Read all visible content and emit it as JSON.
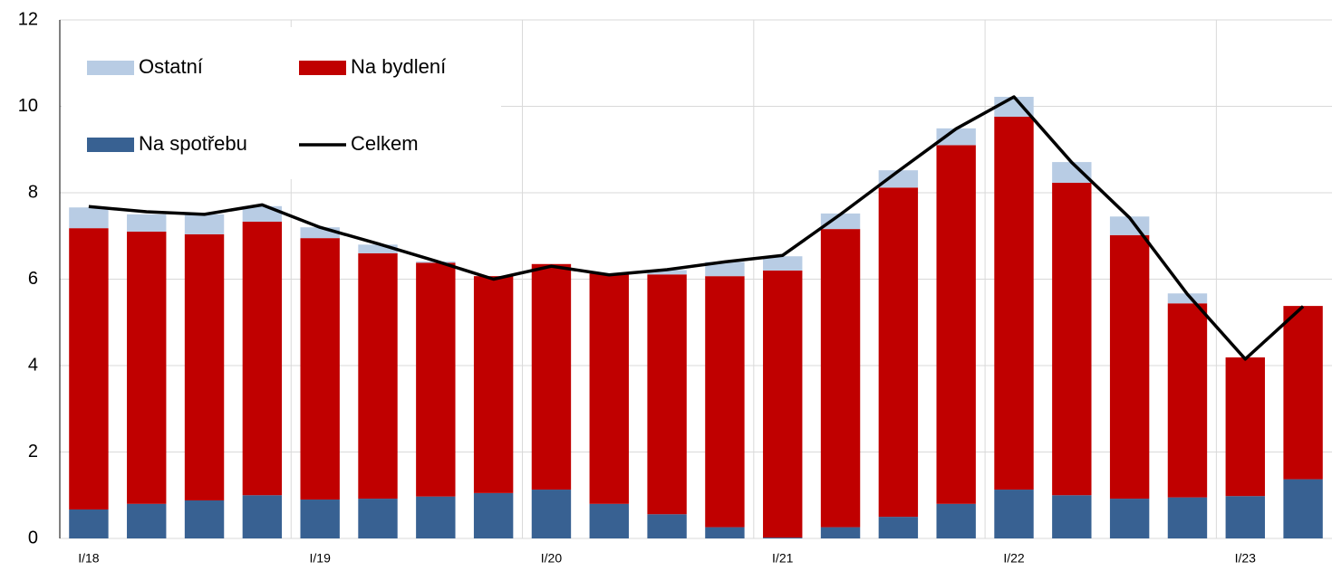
{
  "chart_data": {
    "type": "bar",
    "stacked": true,
    "categories": [
      "I/18",
      null,
      null,
      null,
      "I/19",
      null,
      null,
      null,
      "I/20",
      null,
      null,
      null,
      "I/21",
      null,
      null,
      null,
      "I/22",
      null,
      null,
      null,
      "I/23",
      null
    ],
    "series": [
      {
        "name": "Na spotřebu",
        "color": "#386192",
        "values": [
          0.67,
          0.8,
          0.88,
          1.0,
          0.9,
          0.92,
          0.97,
          1.05,
          1.13,
          0.8,
          0.56,
          0.26,
          0.02,
          0.26,
          0.5,
          0.8,
          1.13,
          1.0,
          0.92,
          0.95,
          0.98,
          1.37
        ]
      },
      {
        "name": "Na bydlení",
        "color": "#c00000",
        "values": [
          6.51,
          6.3,
          6.16,
          6.33,
          6.05,
          5.68,
          5.41,
          5.02,
          5.22,
          5.33,
          5.55,
          5.81,
          6.18,
          6.9,
          7.62,
          8.3,
          8.63,
          7.23,
          6.1,
          4.49,
          3.21,
          4.01
        ]
      },
      {
        "name": "Ostatní",
        "color": "#b8cce4",
        "values": [
          0.48,
          0.4,
          0.46,
          0.36,
          0.25,
          0.2,
          0.03,
          0,
          0,
          0,
          0.1,
          0.33,
          0.33,
          0.36,
          0.4,
          0.39,
          0.46,
          0.48,
          0.43,
          0.23,
          0,
          0
        ]
      },
      {
        "name": "Celkem",
        "type": "line",
        "color": "#000000",
        "values": [
          7.68,
          7.56,
          7.5,
          7.72,
          7.2,
          6.82,
          6.42,
          6.0,
          6.3,
          6.1,
          6.22,
          6.4,
          6.55,
          7.5,
          8.5,
          9.48,
          10.22,
          8.7,
          7.42,
          5.65,
          4.15,
          5.37
        ]
      }
    ],
    "ylim": [
      0,
      12
    ],
    "yticks": [
      0,
      2,
      4,
      6,
      8,
      10,
      12
    ],
    "grid": true,
    "legend": "upper left"
  }
}
